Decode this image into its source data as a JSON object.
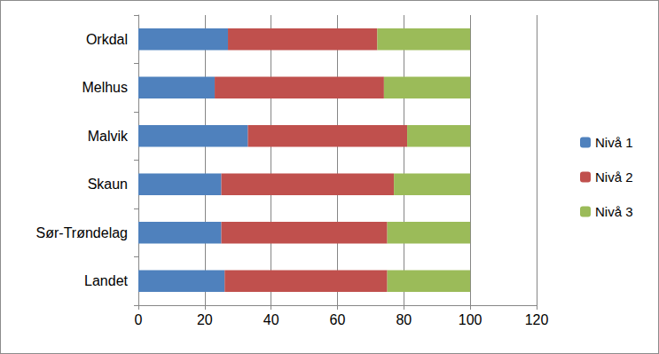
{
  "chart_data": {
    "type": "bar",
    "orientation": "horizontal",
    "stacked": true,
    "categories": [
      "Orkdal",
      "Melhus",
      "Malvik",
      "Skaun",
      "Sør-Trøndelag",
      "Landet"
    ],
    "series": [
      {
        "name": "Nivå 1",
        "color": "#4f81bd",
        "values": [
          27,
          23,
          33,
          25,
          25,
          26
        ]
      },
      {
        "name": "Nivå 2",
        "color": "#c0504d",
        "values": [
          45,
          51,
          48,
          52,
          50,
          49
        ]
      },
      {
        "name": "Nivå 3",
        "color": "#9bbb59",
        "values": [
          28,
          26,
          19,
          23,
          25,
          25
        ]
      }
    ],
    "xlim": [
      0,
      120
    ],
    "xticks": [
      0,
      20,
      40,
      60,
      80,
      100,
      120
    ],
    "grid": true,
    "legend": "right"
  }
}
